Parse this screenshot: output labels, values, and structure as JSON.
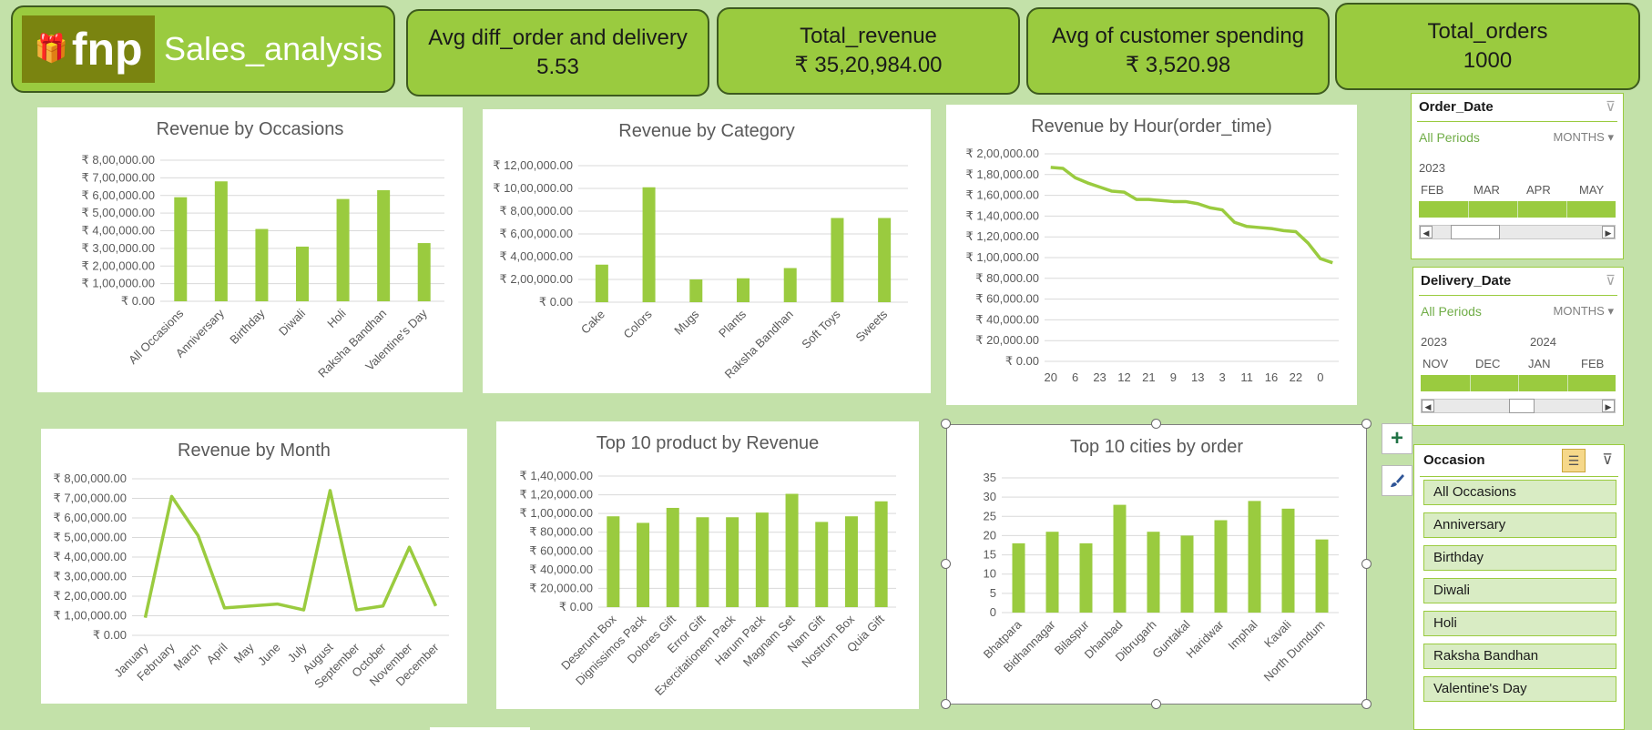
{
  "header": {
    "logo_text": "fnp",
    "app_title": "Sales_analysis"
  },
  "kpis": [
    {
      "label": "Avg diff_order and delivery",
      "value": "5.53"
    },
    {
      "label": "Total_revenue",
      "value": "₹ 35,20,984.00"
    },
    {
      "label": "Avg of customer spending",
      "value": "₹ 3,520.98"
    },
    {
      "label": "Total_orders",
      "value": "1000"
    }
  ],
  "colors": {
    "accent": "#9acb3f",
    "background": "#c3e1a9",
    "panel": "#ffffff",
    "text": "#595959"
  },
  "chart_data": [
    {
      "id": "occasions",
      "type": "bar",
      "title": "Revenue by Occasions",
      "categories": [
        "All Occasions",
        "Anniversary",
        "Birthday",
        "Diwali",
        "Holi",
        "Raksha Bandhan",
        "Valentine's Day"
      ],
      "values": [
        590000,
        680000,
        410000,
        310000,
        580000,
        630000,
        330000
      ],
      "ylim": [
        0,
        800000
      ],
      "yticks": [
        "₹ 0.00",
        "₹ 1,00,000.00",
        "₹ 2,00,000.00",
        "₹ 3,00,000.00",
        "₹ 4,00,000.00",
        "₹ 5,00,000.00",
        "₹ 6,00,000.00",
        "₹ 7,00,000.00",
        "₹ 8,00,000.00"
      ],
      "grid": true
    },
    {
      "id": "category",
      "type": "bar",
      "title": "Revenue by Category",
      "categories": [
        "Cake",
        "Colors",
        "Mugs",
        "Plants",
        "Raksha Bandhan",
        "Soft Toys",
        "Sweets"
      ],
      "values": [
        330000,
        1010000,
        200000,
        210000,
        300000,
        740000,
        740000
      ],
      "ylim": [
        0,
        1200000
      ],
      "yticks": [
        "₹ 0.00",
        "₹ 2,00,000.00",
        "₹ 4,00,000.00",
        "₹ 6,00,000.00",
        "₹ 8,00,000.00",
        "₹ 10,00,000.00",
        "₹ 12,00,000.00"
      ],
      "grid": true
    },
    {
      "id": "hour",
      "type": "line",
      "title": "Revenue by Hour(order_time)",
      "categories": [
        "20",
        "",
        "6",
        "",
        "23",
        "",
        "12",
        "",
        "21",
        "",
        "9",
        "",
        "13",
        "",
        "3",
        "",
        "11",
        "",
        "16",
        "",
        "22",
        "",
        "0",
        ""
      ],
      "values": [
        187000,
        186000,
        177000,
        172000,
        168000,
        164000,
        163000,
        156000,
        156000,
        155000,
        154000,
        154000,
        152000,
        148000,
        146000,
        134000,
        130000,
        129000,
        128000,
        126000,
        125000,
        114000,
        99000,
        95000
      ],
      "ylim": [
        0,
        200000
      ],
      "yticks": [
        "₹ 0.00",
        "₹ 20,000.00",
        "₹ 40,000.00",
        "₹ 60,000.00",
        "₹ 80,000.00",
        "₹ 1,00,000.00",
        "₹ 1,20,000.00",
        "₹ 1,40,000.00",
        "₹ 1,60,000.00",
        "₹ 1,80,000.00",
        "₹ 2,00,000.00"
      ],
      "grid": true
    },
    {
      "id": "month",
      "type": "line",
      "title": "Revenue by Month",
      "categories": [
        "January",
        "February",
        "March",
        "April",
        "May",
        "June",
        "July",
        "August",
        "September",
        "October",
        "November",
        "December"
      ],
      "values": [
        90000,
        710000,
        510000,
        140000,
        150000,
        160000,
        130000,
        740000,
        130000,
        150000,
        450000,
        150000
      ],
      "ylim": [
        0,
        800000
      ],
      "yticks": [
        "₹ 0.00",
        "₹ 1,00,000.00",
        "₹ 2,00,000.00",
        "₹ 3,00,000.00",
        "₹ 4,00,000.00",
        "₹ 5,00,000.00",
        "₹ 6,00,000.00",
        "₹ 7,00,000.00",
        "₹ 8,00,000.00"
      ],
      "grid": true
    },
    {
      "id": "products",
      "type": "bar",
      "title": "Top 10 product by Revenue",
      "categories": [
        "Deserunt Box",
        "Dignissimos Pack",
        "Dolores Gift",
        "Error Gift",
        "Exercitationem Pack",
        "Harum Pack",
        "Magnam Set",
        "Nam Gift",
        "Nostrum Box",
        "Quia Gift"
      ],
      "values": [
        97000,
        90000,
        106000,
        96000,
        96000,
        101000,
        121000,
        91000,
        97000,
        113000
      ],
      "ylim": [
        0,
        140000
      ],
      "yticks": [
        "₹ 0.00",
        "₹ 20,000.00",
        "₹ 40,000.00",
        "₹ 60,000.00",
        "₹ 80,000.00",
        "₹ 1,00,000.00",
        "₹ 1,20,000.00",
        "₹ 1,40,000.00"
      ],
      "grid": true
    },
    {
      "id": "cities",
      "type": "bar",
      "title": "Top 10 cities by order",
      "categories": [
        "Bhatpara",
        "Bidhannagar",
        "Bilaspur",
        "Dhanbad",
        "Dibrugarh",
        "Guntakal",
        "Haridwar",
        "Imphal",
        "Kavali",
        "North Dumdum"
      ],
      "values": [
        18,
        21,
        18,
        28,
        21,
        20,
        24,
        29,
        27,
        19
      ],
      "ylim": [
        0,
        35
      ],
      "yticks": [
        "0",
        "5",
        "10",
        "15",
        "20",
        "25",
        "30",
        "35"
      ],
      "grid": true
    }
  ],
  "timelines": [
    {
      "title": "Order_Date",
      "all_periods": "All Periods",
      "level": "MONTHS",
      "years": [
        "2023"
      ],
      "months": [
        "FEB",
        "MAR",
        "APR",
        "MAY"
      ]
    },
    {
      "title": "Delivery_Date",
      "all_periods": "All Periods",
      "level": "MONTHS",
      "years": [
        "2023",
        "2024"
      ],
      "months": [
        "NOV",
        "DEC",
        "JAN",
        "FEB"
      ]
    }
  ],
  "slicer": {
    "title": "Occasion",
    "items": [
      "All Occasions",
      "Anniversary",
      "Birthday",
      "Diwali",
      "Holi",
      "Raksha Bandhan",
      "Valentine's Day"
    ]
  }
}
